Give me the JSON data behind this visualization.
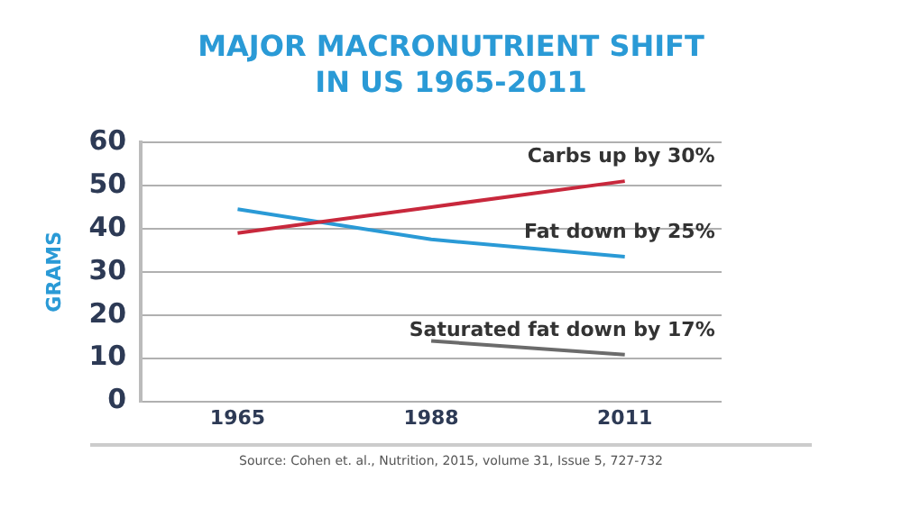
{
  "chart_data": {
    "type": "line",
    "title": "MAJOR MACRONUTRIENT SHIFT IN US 1965-2011",
    "ylabel": "GRAMS",
    "categories": [
      "1965",
      "1988",
      "2011"
    ],
    "series": [
      {
        "name": "Carbs up by 30%",
        "color": "#c8283c",
        "values": [
          39,
          45,
          51
        ]
      },
      {
        "name": "Fat down by 25%",
        "color": "#2a9ad6",
        "values": [
          44.5,
          37.5,
          33.5
        ]
      },
      {
        "name": "Saturated fat down by 17%",
        "color": "#6b6b6b",
        "values": [
          null,
          14,
          10.8
        ]
      }
    ],
    "ylim": [
      0,
      60
    ],
    "yticks": [
      0,
      10,
      20,
      30,
      40,
      50,
      60
    ],
    "grid": "y",
    "legend": false,
    "marker": "none",
    "line_style": "solid",
    "annotations": [
      "Source: Cohen et. al., Nutrition, 2015, volume 31, Issue 5, 727-732"
    ]
  }
}
